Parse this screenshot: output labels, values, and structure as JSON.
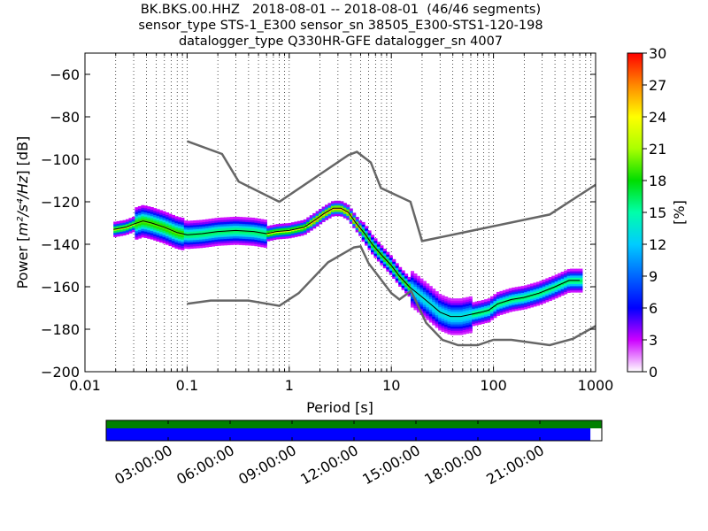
{
  "chart_data": {
    "type": "heatmap",
    "title": {
      "line1": "BK.BKS.00.HHZ   2018-08-01 -- 2018-08-01  (46/46 segments)",
      "line2": "sensor_type STS-1_E300 sensor_sn 38505_E300-STS1-120-198",
      "line3": "datalogger_type Q330HR-GFE datalogger_sn 4007"
    },
    "xlabel": "Period [s]",
    "ylabel_prefix": "Power [",
    "ylabel_math": "m²/s⁴/Hz",
    "ylabel_suffix": "] [dB]",
    "x_scale": "log",
    "xlim": [
      0.01,
      1000
    ],
    "ylim": [
      -200,
      -50
    ],
    "x_ticks": [
      {
        "value": 0.01,
        "label": "0.01"
      },
      {
        "value": 0.1,
        "label": "0.1"
      },
      {
        "value": 1,
        "label": "1"
      },
      {
        "value": 10,
        "label": "10"
      },
      {
        "value": 100,
        "label": "100"
      },
      {
        "value": 1000,
        "label": "1000"
      }
    ],
    "y_ticks": [
      {
        "value": -60,
        "label": "−60"
      },
      {
        "value": -80,
        "label": "−80"
      },
      {
        "value": -100,
        "label": "−100"
      },
      {
        "value": -120,
        "label": "−120"
      },
      {
        "value": -140,
        "label": "−140"
      },
      {
        "value": -160,
        "label": "−160"
      },
      {
        "value": -180,
        "label": "−180"
      },
      {
        "value": -200,
        "label": "−200"
      }
    ],
    "grid": "dotted vertical lines at log subdivisions",
    "colorbar": {
      "label": "[%]",
      "range": [
        0,
        30
      ],
      "ticks": [
        {
          "value": 0,
          "label": "0"
        },
        {
          "value": 3,
          "label": "3"
        },
        {
          "value": 6,
          "label": "6"
        },
        {
          "value": 9,
          "label": "9"
        },
        {
          "value": 12,
          "label": "12"
        },
        {
          "value": 15,
          "label": "15"
        },
        {
          "value": 18,
          "label": "18"
        },
        {
          "value": 21,
          "label": "21"
        },
        {
          "value": 24,
          "label": "24"
        },
        {
          "value": 27,
          "label": "27"
        },
        {
          "value": 30,
          "label": "30"
        }
      ]
    },
    "noise_models": [
      {
        "name": "high_noise_model",
        "color": "#666666",
        "points": [
          [
            0.1,
            -91.5
          ],
          [
            0.22,
            -97.5
          ],
          [
            0.32,
            -110.5
          ],
          [
            0.8,
            -120
          ],
          [
            3.8,
            -98
          ],
          [
            4.6,
            -96.5
          ],
          [
            6.3,
            -101.5
          ],
          [
            7.9,
            -113.5
          ],
          [
            15.4,
            -120
          ],
          [
            20,
            -138.5
          ],
          [
            354.8,
            -126
          ],
          [
            1000,
            -112
          ]
        ]
      },
      {
        "name": "low_noise_model",
        "color": "#666666",
        "points": [
          [
            0.1,
            -168
          ],
          [
            0.17,
            -166.5
          ],
          [
            0.4,
            -166.5
          ],
          [
            0.8,
            -169
          ],
          [
            1.24,
            -163
          ],
          [
            2.4,
            -148.5
          ],
          [
            4.3,
            -141.5
          ],
          [
            5,
            -141
          ],
          [
            6,
            -149
          ],
          [
            10,
            -163
          ],
          [
            12,
            -166
          ],
          [
            15.6,
            -162
          ],
          [
            21.9,
            -177
          ],
          [
            31.6,
            -185
          ],
          [
            45,
            -187.5
          ],
          [
            70,
            -187.5
          ],
          [
            100,
            -185
          ],
          [
            150,
            -185
          ],
          [
            354.8,
            -187.5
          ],
          [
            600,
            -184.5
          ],
          [
            1000,
            -178.5
          ]
        ]
      }
    ],
    "median_psd": {
      "color": "#000000",
      "points": [
        [
          0.019,
          -133
        ],
        [
          0.025,
          -132
        ],
        [
          0.03,
          -130.5
        ],
        [
          0.037,
          -129
        ],
        [
          0.045,
          -130
        ],
        [
          0.06,
          -132
        ],
        [
          0.08,
          -134.5
        ],
        [
          0.1,
          -135.5
        ],
        [
          0.14,
          -135
        ],
        [
          0.2,
          -134
        ],
        [
          0.3,
          -133.5
        ],
        [
          0.45,
          -134
        ],
        [
          0.6,
          -135
        ],
        [
          0.75,
          -134
        ],
        [
          1,
          -133.5
        ],
        [
          1.4,
          -132
        ],
        [
          1.8,
          -128.5
        ],
        [
          2.2,
          -125.5
        ],
        [
          2.7,
          -123
        ],
        [
          3.2,
          -123
        ],
        [
          3.8,
          -125
        ],
        [
          4.5,
          -130
        ],
        [
          5.5,
          -135
        ],
        [
          6.5,
          -140
        ],
        [
          8,
          -145
        ],
        [
          10,
          -150
        ],
        [
          12,
          -155
        ],
        [
          15,
          -160
        ],
        [
          19,
          -164
        ],
        [
          24,
          -168
        ],
        [
          30,
          -172
        ],
        [
          38,
          -174
        ],
        [
          48,
          -174
        ],
        [
          60,
          -173
        ],
        [
          75,
          -172
        ],
        [
          90,
          -171
        ],
        [
          110,
          -168
        ],
        [
          150,
          -166
        ],
        [
          200,
          -165
        ],
        [
          280,
          -163
        ],
        [
          400,
          -160
        ],
        [
          550,
          -157
        ],
        [
          700,
          -157
        ]
      ]
    },
    "density_bands": [
      {
        "x_range": [
          0.03,
          0.09
        ],
        "y_center": -133,
        "spread": 7,
        "peak_pct": 18
      },
      {
        "x_range": [
          0.09,
          0.6
        ],
        "y_center": -134,
        "spread": 6,
        "peak_pct": 15
      },
      {
        "x_range": [
          0.6,
          1.5
        ],
        "y_center": -133,
        "spread": 3,
        "peak_pct": 21
      },
      {
        "x_range": [
          1.5,
          5
        ],
        "y_center": -125,
        "spread": 3,
        "peak_pct": 24
      },
      {
        "x_range": [
          5,
          15
        ],
        "y_center": -148,
        "spread": 4,
        "peak_pct": 18
      },
      {
        "x_range": [
          15,
          60
        ],
        "y_center": -170,
        "spread": 8,
        "peak_pct": 12
      },
      {
        "x_range": [
          60,
          700
        ],
        "y_center": -165,
        "spread": 5,
        "peak_pct": 15
      }
    ]
  },
  "timeline": {
    "ticks": [
      "03:00:00",
      "06:00:00",
      "09:00:00",
      "12:00:00",
      "15:00:00",
      "18:00:00",
      "21:00:00"
    ],
    "top_bar_color": "#008000",
    "bottom_bar_color": "#0000ff",
    "coverage_fraction": 0.977
  }
}
